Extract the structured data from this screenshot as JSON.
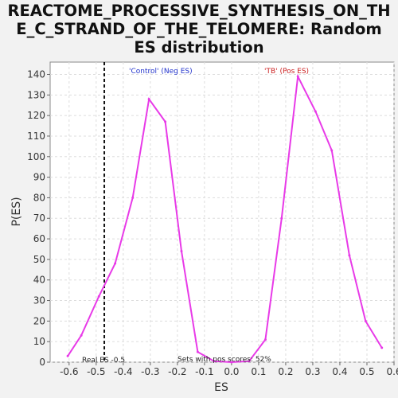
{
  "chart_data": {
    "type": "line",
    "title_lines": [
      "REACTOME_PROCESSIVE_SYNTHESIS_ON_TH",
      "E_C_STRAND_OF_THE_TELOMERE: Random",
      "ES distribution"
    ],
    "xlabel": "ES",
    "ylabel": "P(ES)",
    "xlim": [
      -0.67,
      0.6
    ],
    "ylim": [
      0,
      146
    ],
    "xticks": [
      -0.6,
      -0.5,
      -0.4,
      -0.3,
      -0.2,
      -0.1,
      0.0,
      0.1,
      0.2,
      0.3,
      0.4,
      0.5,
      0.6
    ],
    "xtick_labels": [
      "-0.6",
      "-0.5",
      "-0.4",
      "-0.3",
      "-0.2",
      "-0.1",
      "0.0",
      "0.1",
      "0.2",
      "0.3",
      "0.4",
      "0.5",
      "0.6"
    ],
    "yticks": [
      0,
      10,
      20,
      30,
      40,
      50,
      60,
      70,
      80,
      90,
      100,
      110,
      120,
      130,
      140
    ],
    "ytick_labels": [
      "0",
      "10",
      "20",
      "30",
      "40",
      "50",
      "60",
      "70",
      "80",
      "90",
      "100",
      "110",
      "120",
      "130",
      "140"
    ],
    "grid": true,
    "series": [
      {
        "name": "ES distribution",
        "color": "#e83ae8",
        "x": [
          -0.605,
          -0.555,
          -0.49,
          -0.43,
          -0.365,
          -0.305,
          -0.245,
          -0.185,
          -0.125,
          -0.065,
          0.0,
          0.065,
          0.125,
          0.185,
          0.245,
          0.31,
          0.37,
          0.435,
          0.495,
          0.555
        ],
        "y": [
          3,
          13,
          32,
          48,
          80,
          128,
          117,
          54,
          5,
          0.5,
          0,
          0.5,
          11,
          70,
          139,
          122,
          103,
          52,
          20,
          7
        ]
      }
    ],
    "real_es": -0.47,
    "annotations": {
      "control_label": "'Control' (Neg ES)",
      "control_color": "#2233cc",
      "tb_label": "'TB' (Pos ES)",
      "tb_color": "#cc2222",
      "real_es_label": "Real ES -0.5",
      "pos_scores_label": "Sets with pos scores: 52%"
    }
  }
}
